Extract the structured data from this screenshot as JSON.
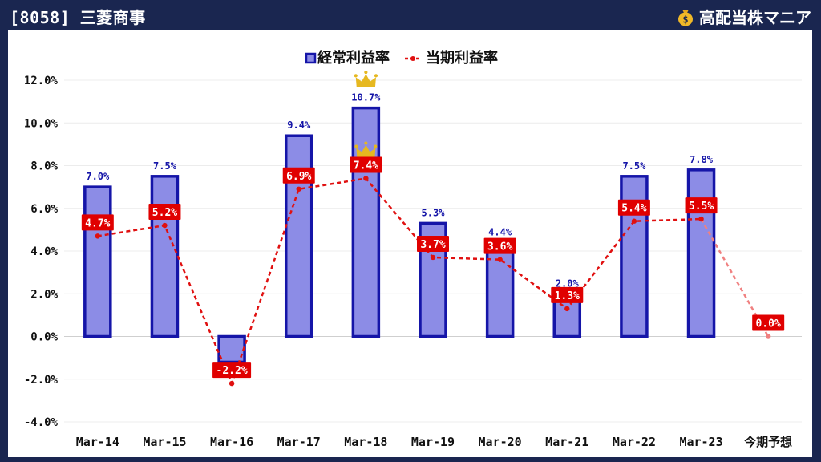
{
  "header": {
    "title": "[8058] 三菱商事",
    "brand": "高配当株マニア"
  },
  "colors": {
    "background": "#1a2650",
    "bar_fill": "#8c8ce6",
    "bar_stroke": "#1515a8",
    "line": "#e01010",
    "forecast_line": "#f08080",
    "label_bg": "#e00000",
    "crown": "#e6b820"
  },
  "chart_data": {
    "type": "bar",
    "categories": [
      "Mar-14",
      "Mar-15",
      "Mar-16",
      "Mar-17",
      "Mar-18",
      "Mar-19",
      "Mar-20",
      "Mar-21",
      "Mar-22",
      "Mar-23",
      "今期予想"
    ],
    "series": [
      {
        "name": "経常利益率",
        "type": "bar",
        "values": [
          7.0,
          7.5,
          -0.0,
          9.4,
          10.7,
          5.3,
          4.4,
          2.0,
          7.5,
          7.8,
          null
        ],
        "labels": [
          "7.0%",
          "7.5%",
          "",
          "9.4%",
          "10.7%",
          "5.3%",
          "4.4%",
          "2.0%",
          "7.5%",
          "7.8%",
          ""
        ]
      },
      {
        "name": "当期利益率",
        "type": "line",
        "values": [
          4.7,
          5.2,
          -2.2,
          6.9,
          7.4,
          3.7,
          3.6,
          1.3,
          5.4,
          5.5,
          0.0
        ],
        "labels": [
          "4.7%",
          "5.2%",
          "-2.2%",
          "6.9%",
          "7.4%",
          "3.7%",
          "3.6%",
          "1.3%",
          "5.4%",
          "5.5%",
          "0.0%"
        ]
      }
    ],
    "bar_dip": -1.2,
    "ylim": [
      -4,
      12
    ],
    "yticks": [
      "12.0%",
      "10.0%",
      "8.0%",
      "6.0%",
      "4.0%",
      "2.0%",
      "0.0%",
      "-2.0%",
      "-4.0%"
    ],
    "ytick_values": [
      12,
      10,
      8,
      6,
      4,
      2,
      0,
      -2,
      -4
    ],
    "grid": true,
    "legend_position": "top-center",
    "highlights": [
      "Mar-18"
    ]
  }
}
